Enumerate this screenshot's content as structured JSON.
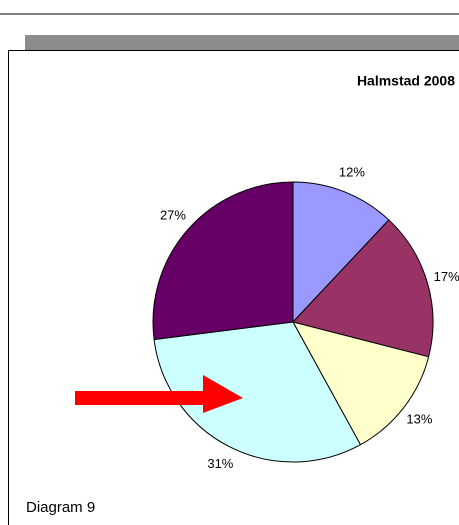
{
  "chart_data": {
    "type": "pie",
    "title": "Halmstad 2008",
    "categories": [
      null,
      null,
      null,
      null,
      null
    ],
    "values": [
      12,
      17,
      13,
      31,
      27
    ],
    "value_labels": [
      "12%",
      "17%",
      "13%",
      "31%",
      "27%"
    ],
    "colors": [
      "#9999ff",
      "#993366",
      "#ffffcc",
      "#ccffff",
      "#660066"
    ]
  },
  "caption": "Diagram 9"
}
